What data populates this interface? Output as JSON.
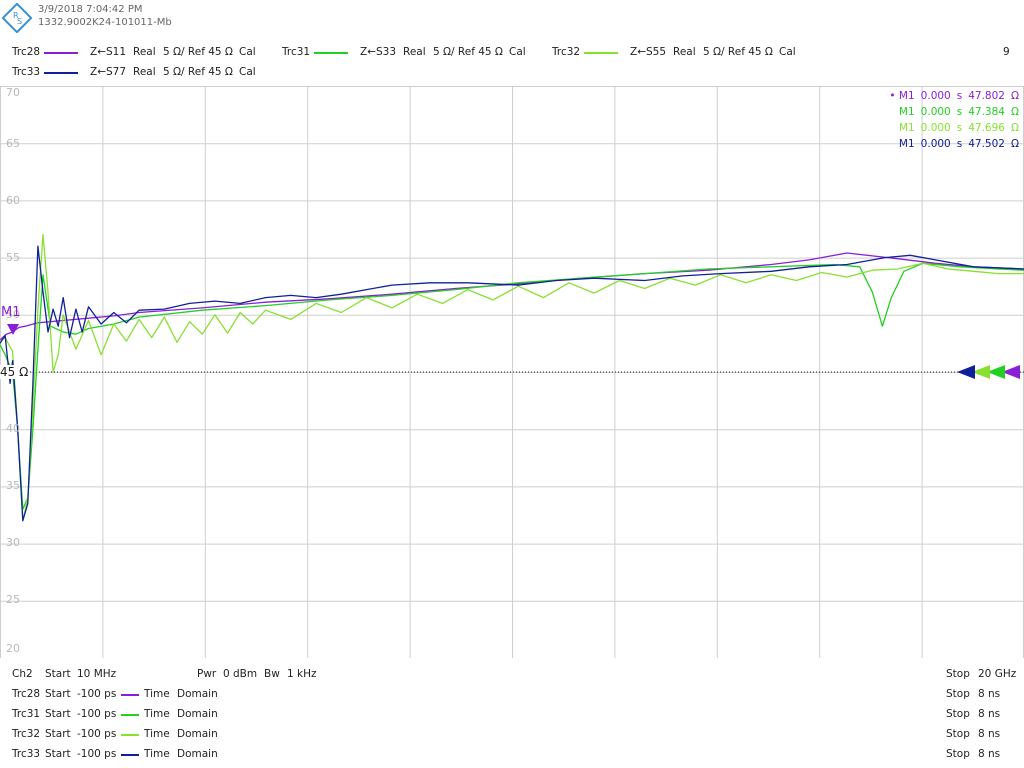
{
  "header": {
    "timestamp": "3/9/2018 7:04:42 PM",
    "instrument_id": "1332.9002K24-101011-Mb",
    "page_number": "9"
  },
  "traces": [
    {
      "name": "Trc28",
      "param": "Z←S11",
      "format": "Real",
      "scale": "5 Ω/ Ref 45 Ω",
      "cal": "Cal",
      "color": "#8a1fd6"
    },
    {
      "name": "Trc31",
      "param": "Z←S33",
      "format": "Real",
      "scale": "5 Ω/ Ref 45 Ω",
      "cal": "Cal",
      "color": "#22d022"
    },
    {
      "name": "Trc32",
      "param": "Z←S55",
      "format": "Real",
      "scale": "5 Ω/ Ref 45 Ω",
      "cal": "Cal",
      "color": "#88e030"
    },
    {
      "name": "Trc33",
      "param": "Z←S77",
      "format": "Real",
      "scale": "5 Ω/ Ref 45 Ω",
      "cal": "Cal",
      "color": "#10209a"
    }
  ],
  "markers": [
    {
      "prefix": "• ",
      "label": "M1",
      "time": "0.000",
      "unit": "s",
      "value": "47.802",
      "vunit": "Ω",
      "color": "#8a1fd6"
    },
    {
      "prefix": "",
      "label": "M1",
      "time": "0.000",
      "unit": "s",
      "value": "47.384",
      "vunit": "Ω",
      "color": "#22d022"
    },
    {
      "prefix": "",
      "label": "M1",
      "time": "0.000",
      "unit": "s",
      "value": "47.696",
      "vunit": "Ω",
      "color": "#88e030"
    },
    {
      "prefix": "",
      "label": "M1",
      "time": "0.000",
      "unit": "s",
      "value": "47.502",
      "vunit": "Ω",
      "color": "#10209a"
    }
  ],
  "plot": {
    "ref_label": "45 Ω",
    "marker_tag": "M1",
    "ref_level": 45,
    "y_ticks": [
      "70",
      "65",
      "60",
      "55",
      "50",
      "",
      "40",
      "35",
      "30",
      "25",
      "20"
    ]
  },
  "footer": {
    "channel": {
      "name": "Ch2",
      "start_label": "Start",
      "start_value": "10 MHz",
      "pwr_label": "Pwr",
      "pwr_value": "0 dBm",
      "bw_label": "Bw",
      "bw_value": "1 kHz",
      "stop_label": "Stop",
      "stop_value": "20 GHz"
    },
    "rows": [
      {
        "trace": "Trc28",
        "start_label": "Start",
        "start_value": "-100 ps",
        "domain1": "Time",
        "domain2": "Domain",
        "stop_label": "Stop",
        "stop_value": "8 ns",
        "color": "#8a1fd6"
      },
      {
        "trace": "Trc31",
        "start_label": "Start",
        "start_value": "-100 ps",
        "domain1": "Time",
        "domain2": "Domain",
        "stop_label": "Stop",
        "stop_value": "8 ns",
        "color": "#22d022"
      },
      {
        "trace": "Trc32",
        "start_label": "Start",
        "start_value": "-100 ps",
        "domain1": "Time",
        "domain2": "Domain",
        "stop_label": "Stop",
        "stop_value": "8 ns",
        "color": "#88e030"
      },
      {
        "trace": "Trc33",
        "start_label": "Start",
        "start_value": "-100 ps",
        "domain1": "Time",
        "domain2": "Domain",
        "stop_label": "Stop",
        "stop_value": "8 ns",
        "color": "#10209a"
      }
    ]
  },
  "chart_data": {
    "type": "line",
    "x_unit": "ns",
    "xlim": [
      -0.1,
      8
    ],
    "ylim": [
      20,
      70
    ],
    "y_unit": "Ω",
    "grid": true,
    "series": [
      {
        "name": "Trc28",
        "color": "#8a1fd6",
        "x": [
          -0.1,
          -0.05,
          0,
          0.05,
          0.1,
          0.2,
          0.4,
          0.6,
          0.8,
          1.0,
          1.5,
          2.0,
          2.5,
          3.0,
          3.5,
          4.0,
          4.5,
          5.0,
          5.5,
          6.0,
          6.3,
          6.6,
          7.0,
          7.3,
          7.6,
          8.0
        ],
        "y": [
          47.8,
          48.3,
          48.5,
          48.9,
          49.0,
          49.3,
          49.5,
          49.7,
          49.9,
          50.2,
          50.6,
          51.1,
          51.4,
          51.8,
          52.3,
          52.7,
          53.2,
          53.6,
          53.9,
          54.4,
          54.8,
          55.4,
          54.9,
          54.5,
          54.2,
          54.0
        ]
      },
      {
        "name": "Trc31",
        "color": "#22d022",
        "x": [
          -0.1,
          -0.06,
          0,
          0.04,
          0.08,
          0.12,
          0.16,
          0.2,
          0.24,
          0.3,
          0.4,
          0.5,
          0.6,
          0.8,
          1.0,
          1.5,
          2.0,
          2.5,
          3.0,
          3.5,
          4.0,
          4.5,
          5.0,
          5.5,
          6.0,
          6.5,
          6.7,
          6.8,
          6.88,
          6.95,
          7.05,
          7.2,
          7.5,
          7.8,
          8.0
        ],
        "y": [
          47.4,
          46.5,
          45.0,
          40.0,
          33.0,
          34.0,
          40.0,
          47.0,
          53.5,
          49.0,
          48.5,
          48.3,
          48.8,
          49.2,
          49.8,
          50.4,
          50.8,
          51.3,
          51.7,
          52.2,
          52.8,
          53.2,
          53.6,
          54.0,
          54.2,
          54.4,
          54.2,
          52.0,
          49.0,
          51.5,
          53.8,
          54.5,
          54.2,
          54.0,
          53.9
        ]
      },
      {
        "name": "Trc32",
        "color": "#88e030",
        "x": [
          -0.1,
          -0.06,
          0,
          0.04,
          0.08,
          0.12,
          0.16,
          0.2,
          0.24,
          0.28,
          0.32,
          0.36,
          0.4,
          0.5,
          0.6,
          0.7,
          0.8,
          0.9,
          1.0,
          1.1,
          1.2,
          1.3,
          1.4,
          1.5,
          1.6,
          1.7,
          1.8,
          1.9,
          2.0,
          2.2,
          2.4,
          2.6,
          2.8,
          3.0,
          3.2,
          3.4,
          3.6,
          3.8,
          4.0,
          4.2,
          4.4,
          4.6,
          4.8,
          5.0,
          5.2,
          5.4,
          5.6,
          5.8,
          6.0,
          6.2,
          6.4,
          6.6,
          6.8,
          7.0,
          7.2,
          7.4,
          7.6,
          7.8,
          8.0
        ],
        "y": [
          47.7,
          48.0,
          46.8,
          40.0,
          32.0,
          34.0,
          42.0,
          50.5,
          57.0,
          52.0,
          45.0,
          46.5,
          50.0,
          47.0,
          49.5,
          46.5,
          49.2,
          47.7,
          49.6,
          48.0,
          49.8,
          47.6,
          49.4,
          48.3,
          50.0,
          48.4,
          50.2,
          49.2,
          50.4,
          49.6,
          51.0,
          50.2,
          51.5,
          50.6,
          51.8,
          51.0,
          52.2,
          51.3,
          52.5,
          51.5,
          52.8,
          51.9,
          53.0,
          52.3,
          53.2,
          52.6,
          53.5,
          52.8,
          53.5,
          53.0,
          53.7,
          53.3,
          53.9,
          54.0,
          54.5,
          54.0,
          53.8,
          53.6,
          53.6
        ]
      },
      {
        "name": "Trc33",
        "color": "#10209a",
        "x": [
          -0.1,
          -0.06,
          -0.02,
          0,
          0.04,
          0.08,
          0.12,
          0.16,
          0.2,
          0.24,
          0.28,
          0.32,
          0.36,
          0.4,
          0.45,
          0.5,
          0.55,
          0.6,
          0.7,
          0.8,
          0.9,
          1.0,
          1.2,
          1.4,
          1.6,
          1.8,
          2.0,
          2.2,
          2.4,
          2.6,
          2.8,
          3.0,
          3.3,
          3.6,
          4.0,
          4.3,
          4.6,
          5.0,
          5.3,
          5.6,
          6.0,
          6.3,
          6.6,
          6.9,
          7.1,
          7.3,
          7.6,
          8.0
        ],
        "y": [
          47.5,
          48.2,
          44.0,
          46.0,
          40.0,
          32.0,
          33.5,
          44.0,
          56.0,
          52.0,
          48.5,
          50.5,
          49.0,
          51.5,
          48.0,
          50.5,
          48.5,
          50.7,
          49.2,
          50.2,
          49.3,
          50.4,
          50.5,
          51.0,
          51.2,
          51.0,
          51.5,
          51.7,
          51.5,
          51.8,
          52.2,
          52.6,
          52.8,
          52.8,
          52.6,
          53.0,
          53.2,
          53.0,
          53.4,
          53.6,
          53.8,
          54.2,
          54.4,
          55.0,
          55.2,
          54.8,
          54.2,
          54.0
        ]
      }
    ]
  }
}
